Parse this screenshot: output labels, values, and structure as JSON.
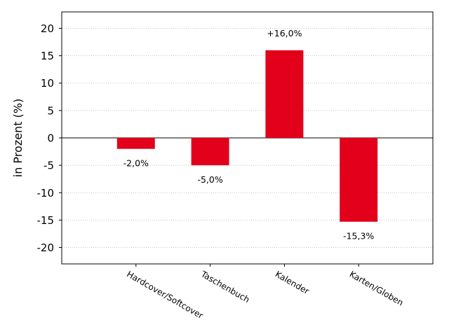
{
  "chart_data": {
    "type": "bar",
    "title": "",
    "xlabel": "",
    "ylabel": "in Prozent (%)",
    "categories": [
      "Hardcover/Softcover",
      "Taschenbuch",
      "Kalender",
      "Karten/Globen"
    ],
    "values": [
      -2.0,
      -5.0,
      16.0,
      -15.3
    ],
    "data_labels": [
      "-2,0%",
      "-5,0%",
      "+16,0%",
      "-15,3%"
    ],
    "ylim": [
      -23,
      23
    ],
    "yticks": [
      20,
      15,
      10,
      5,
      0,
      -5,
      -10,
      -15,
      -20
    ],
    "ytick_labels": [
      "20",
      "15",
      "10",
      "5",
      "0",
      "-5",
      "-10",
      "-15",
      "-20"
    ],
    "grid": "horizontal dotted",
    "legend": "none",
    "bar_color": "#e2001a"
  }
}
